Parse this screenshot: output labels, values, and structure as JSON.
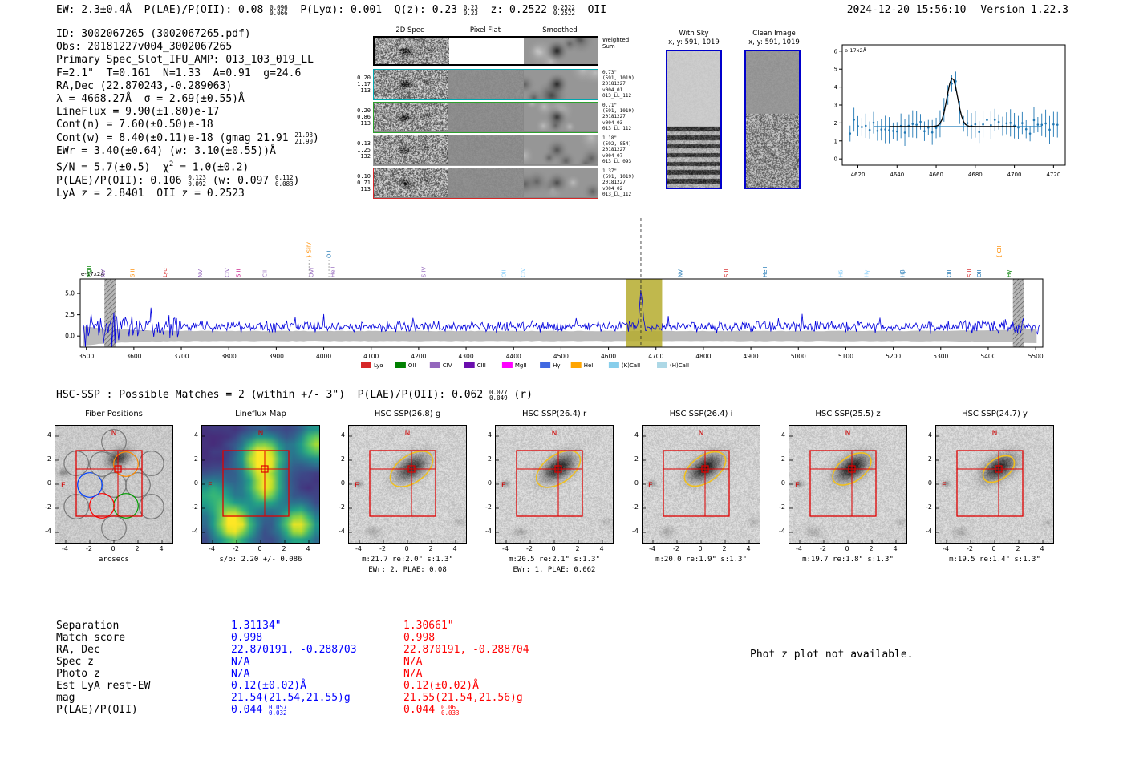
{
  "meta": {
    "timestamp": "2024-12-20 15:56:10",
    "version_label": "Version 1.22.3"
  },
  "top_line": {
    "segments": [
      {
        "t": "EW: 2.3±0.4Å  P(LAE)/P(OII): 0.08 "
      },
      {
        "sup": "0.096",
        "sub": "0.066"
      },
      {
        "t": "  P(Lyα): 0.001  Q(z): 0.23 "
      },
      {
        "sup": "0.23",
        "sub": "0.23"
      },
      {
        "t": "  z: 0.2522 "
      },
      {
        "sup": "0.2522",
        "sub": "0.2522"
      },
      {
        "t": "  OII"
      }
    ]
  },
  "info_block": {
    "lines": [
      "ID: 3002067265 (3002067265.pdf)",
      "Obs: 20181227v004_3002067265",
      "Primary Spec_Slot_IFU_AMP: 013_103_019_LL",
      [
        {
          "t": "F=2.1\"  T=0."
        },
        {
          "ov": "161"
        },
        {
          "t": "  N=1."
        },
        {
          "ov": "33"
        },
        {
          "t": "  A=0."
        },
        {
          "ov": "91"
        },
        {
          "t": "  g=24."
        },
        {
          "ov": "6"
        }
      ],
      "RA,Dec (22.870243,-0.289063)",
      "λ = 4668.27Å  σ = 2.69(±0.55)Å",
      "LineFlux = 9.90(±1.80)e-17",
      "Cont(n) = 7.60(±0.50)e-18",
      [
        {
          "t": "Cont(w) = 8.40(±0.11)e-18 (gmag 21.91 "
        },
        {
          "sup": "21.93",
          "sub": "21.90"
        },
        {
          "t": ")"
        }
      ],
      "EWr = 3.40(±0.64) (w: 3.10(±0.55))Å",
      [
        {
          "t": "S/N = 5.7(±0.5)  χ"
        },
        {
          "sup2": "2"
        },
        {
          "t": " = 1.0(±0.2)"
        }
      ],
      [
        {
          "t": "P(LAE)/P(OII): 0.106 "
        },
        {
          "sup": "0.123",
          "sub": "0.092"
        },
        {
          "t": " (w: 0.097 "
        },
        {
          "sup": "0.112",
          "sub": "0.083"
        },
        {
          "t": ")"
        }
      ],
      "LyA z = 2.8401  OII z = 0.2523"
    ]
  },
  "spec2d": {
    "col_headers": [
      "2D Spec",
      "Pixel Flat",
      "Smoothed"
    ],
    "weighted_label": "Weighted Sum",
    "rows": [
      {
        "color": "#00a8b0",
        "signal": 130,
        "left": [
          "0.20",
          "1.17",
          "113"
        ],
        "right": [
          "0.73\"",
          "(591, 1019)",
          "20181227",
          "v004_01",
          "013_LL_112"
        ]
      },
      {
        "color": "#2ca02c",
        "signal": 120,
        "left": [
          "0.20",
          "0.86",
          "113"
        ],
        "right": [
          "0.71\"",
          "(591, 1019)",
          "20181227",
          "v004_03",
          "013_LL_112"
        ]
      },
      {
        "color": "#999999",
        "signal": 80,
        "left": [
          "0.13",
          "1.25",
          "132"
        ],
        "right": [
          "1.18\"",
          "(592, 854)",
          "20181227",
          "v004_07",
          "013_LL_093"
        ]
      },
      {
        "color": "#d62728",
        "signal": 90,
        "left": [
          "0.10",
          "0.71",
          "113"
        ],
        "right": [
          "1.37\"",
          "(591, 1019)",
          "20181227",
          "v004_02",
          "013_LL_112"
        ]
      }
    ]
  },
  "sky_panels": [
    {
      "title": "With Sky",
      "coords": "x, y: 591, 1019"
    },
    {
      "title": "Clean Image",
      "coords": "x, y: 591, 1019"
    }
  ],
  "hsc_heading": {
    "segments": [
      {
        "t": "HSC-SSP : Possible Matches = 2 (within +/- 3\")  P(LAE)/P(OII): 0.062 "
      },
      {
        "sup": "0.077",
        "sub": "0.049"
      },
      {
        "t": " (r)"
      }
    ]
  },
  "chart_data": [
    {
      "id": "line_fit_plot",
      "type": "scatter",
      "title": "",
      "ylabel": "e-17x2Å",
      "xlim": [
        4612,
        4726
      ],
      "ylim": [
        -0.35,
        6.35
      ],
      "x_ticks": [
        4620,
        4640,
        4660,
        4680,
        4700,
        4720
      ],
      "y_ticks": [
        0,
        1,
        2,
        3,
        4,
        5,
        6
      ],
      "gaussian": {
        "center": 4668.27,
        "sigma": 2.69,
        "amplitude": 2.7,
        "continuum": 1.8
      },
      "point_color": "#1f77b4",
      "fit_color": "#000000"
    },
    {
      "id": "full_spectrum",
      "type": "line",
      "ylabel": "e-17x2Å",
      "xlim": [
        3487,
        5515
      ],
      "ylim": [
        -1.3,
        6.7
      ],
      "x_ticks": [
        3500,
        3600,
        3700,
        3800,
        3900,
        4000,
        4100,
        4200,
        4300,
        4400,
        4500,
        4600,
        4700,
        4800,
        4900,
        5000,
        5100,
        5200,
        5300,
        5400,
        5500
      ],
      "y_ticks": [
        "0.0",
        "2.5",
        "5.0"
      ],
      "y_tick_values": [
        0,
        2.5,
        5
      ],
      "line_color": "#0000dd",
      "continuum_level": 1.1,
      "detection": {
        "wavelength": 4668.27,
        "sigma": 2.8,
        "amplitude": 4.1
      },
      "highlight_band": {
        "from": 4637,
        "to": 4713,
        "color": "#b5ab2e"
      },
      "masked_bands": [
        [
          3538,
          3562
        ],
        [
          5452,
          5476
        ]
      ],
      "line_markers": [
        {
          "wl": 3505,
          "label": "MgII",
          "color": "#008000"
        },
        {
          "wl": 3535,
          "label": "NV",
          "color": "#9467bd"
        },
        {
          "wl": 3597,
          "label": "SiII",
          "color": "#ff8c00"
        },
        {
          "wl": 3665,
          "label": "Lyα",
          "color": "#d62728"
        },
        {
          "wl": 3740,
          "label": "NV",
          "color": "#9467bd"
        },
        {
          "wl": 3796,
          "label": "CIV",
          "color": "#9467bd"
        },
        {
          "wl": 3820,
          "label": "SiII",
          "color": "#c71585"
        },
        {
          "wl": 3876,
          "label": "CII",
          "color": "#9467bd"
        },
        {
          "wl": 3969,
          "label": "SiIV",
          "color": "#ff8c00",
          "tier": 1,
          "brace": "}"
        },
        {
          "wl": 3974,
          "label": "OVI",
          "color": "#9467bd"
        },
        {
          "wl": 4011,
          "label": "OII",
          "color": "#1f77b4",
          "tier": 1
        },
        {
          "wl": 4019,
          "label": "HeII",
          "color": "#9467bd"
        },
        {
          "wl": 4210,
          "label": "SiIV",
          "color": "#9467bd"
        },
        {
          "wl": 4379,
          "label": "OII",
          "color": "#87cefa"
        },
        {
          "wl": 4420,
          "label": "CIV",
          "color": "#87cefa"
        },
        {
          "wl": 4751,
          "label": "NV",
          "color": "#1f77b4"
        },
        {
          "wl": 4848,
          "label": "SiII",
          "color": "#d62728"
        },
        {
          "wl": 4929,
          "label": "HeII",
          "color": "#1f77b4"
        },
        {
          "wl": 5089,
          "label": "Hδ",
          "color": "#87cefa"
        },
        {
          "wl": 5143,
          "label": "Hγ",
          "color": "#87cefa"
        },
        {
          "wl": 5219,
          "label": "Hβ",
          "color": "#1f77b4"
        },
        {
          "wl": 5317,
          "label": "OIII",
          "color": "#1f77b4"
        },
        {
          "wl": 5360,
          "label": "SiII",
          "color": "#d62728"
        },
        {
          "wl": 5381,
          "label": "OIII",
          "color": "#1f77b4"
        },
        {
          "wl": 5423,
          "label": "CIII",
          "color": "#ff8c00",
          "tier": 1,
          "brace": "{"
        },
        {
          "wl": 5443,
          "label": "Hγ",
          "color": "#008000"
        }
      ],
      "legend": [
        {
          "label": "Lyα",
          "color": "#d62728"
        },
        {
          "label": "OII",
          "color": "#008000"
        },
        {
          "label": "CIV",
          "color": "#9467bd"
        },
        {
          "label": "CIII",
          "color": "#6a0dad"
        },
        {
          "label": "MgII",
          "color": "#ff00ff"
        },
        {
          "label": "Hγ",
          "color": "#4169e1"
        },
        {
          "label": "HeII",
          "color": "#ffa500"
        },
        {
          "label": "(K)CaII",
          "color": "#87ceeb"
        },
        {
          "label": "(H)CaII",
          "color": "#add8e6"
        }
      ]
    }
  ],
  "cutouts": {
    "ticks": [
      "-4",
      "-2",
      "0",
      "2",
      "4"
    ],
    "tick_values": [
      -4,
      -2,
      0,
      2,
      4
    ],
    "compass": {
      "n": "N",
      "e": "E"
    },
    "panels": [
      {
        "key": "fiber",
        "type": "fiber",
        "title": "Fiber Positions",
        "caption1": "arcsecs"
      },
      {
        "key": "flux",
        "type": "flux",
        "title": "Lineflux Map",
        "caption1": "s/b: 2.20 +/- 0.086"
      },
      {
        "key": "g",
        "type": "img",
        "title": "HSC SSP(26.8) g",
        "caption1": "m:21.7 re:2.0\" s:1.3\"",
        "caption2": "EWr: 2. PLAE: 0.08"
      },
      {
        "key": "r",
        "type": "img",
        "title": "HSC SSP(26.4) r",
        "caption1": "m:20.5 re:2.1\" s:1.3\"",
        "caption2": "EWr: 1. PLAE: 0.062"
      },
      {
        "key": "i",
        "type": "img",
        "title": "HSC SSP(26.4) i",
        "caption1": "m:20.0 re:1.9\" s:1.3\""
      },
      {
        "key": "z",
        "type": "img",
        "title": "HSC SSP(25.5) z",
        "caption1": "m:19.7 re:1.8\" s:1.3\""
      },
      {
        "key": "y",
        "type": "img",
        "title": "HSC SSP(24.7) y",
        "caption1": "m:19.5 re:1.4\" s:1.3\""
      }
    ]
  },
  "match_table": {
    "row_labels": [
      "Separation",
      "Match score",
      "RA, Dec",
      "Spec z",
      "Photo z",
      "Est LyA rest-EW",
      "mag",
      "P(LAE)/P(OII)"
    ],
    "columns": [
      {
        "color": "#0000ff",
        "values": [
          "1.31134\"",
          "0.998",
          "22.870191, -0.288703",
          "N/A",
          "N/A",
          "0.12(±0.02)Å",
          "21.54(21.54,21.55)g"
        ],
        "plae": {
          "v": "0.044",
          "sup": "0.057",
          "sub": "0.032"
        }
      },
      {
        "color": "#ff0000",
        "values": [
          "1.30661\"",
          "0.998",
          "22.870191, -0.288704",
          "N/A",
          "N/A",
          "0.12(±0.02)Å",
          "21.55(21.54,21.56)g"
        ],
        "plae": {
          "v": "0.044",
          "sup": "0.06",
          "sub": "0.033"
        }
      }
    ],
    "note": "Phot z plot not available."
  }
}
